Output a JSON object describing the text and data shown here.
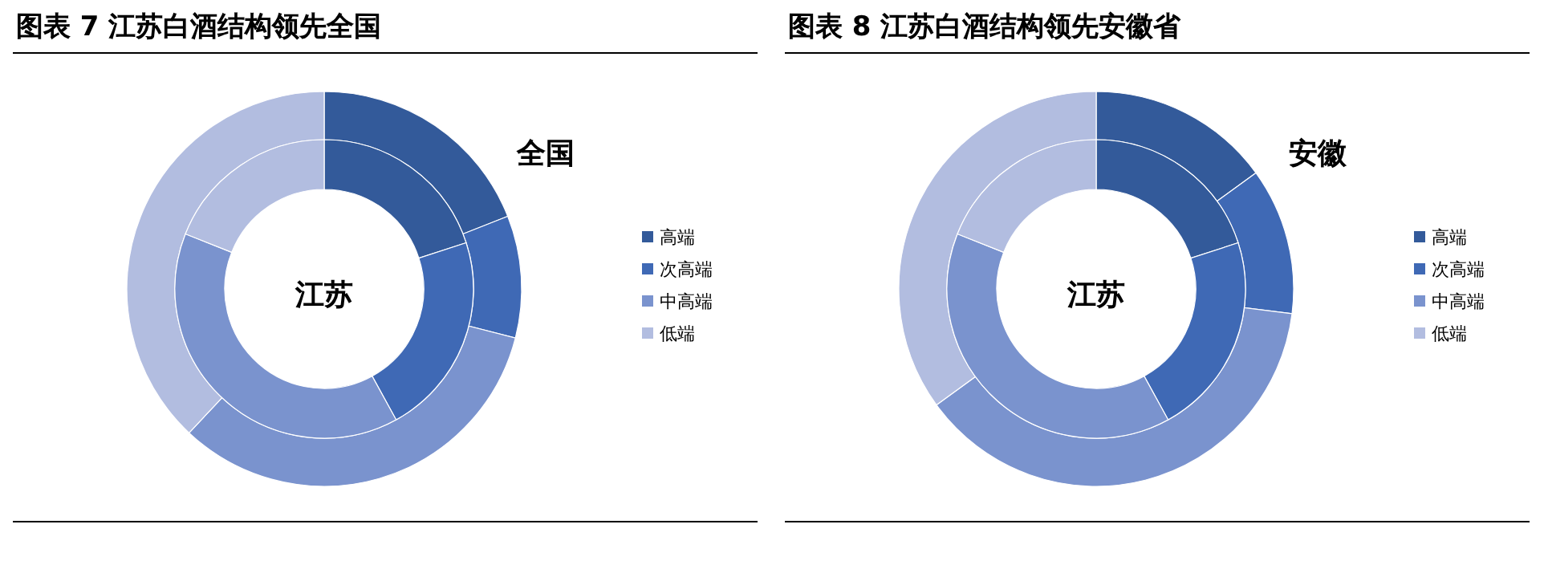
{
  "chart_data": [
    {
      "type": "donut",
      "title": "图表 7 江苏白酒结构领先全国",
      "categories": [
        "高端",
        "次高端",
        "中高端",
        "低端"
      ],
      "colors": [
        "#335a9a",
        "#3f69b5",
        "#7a93ce",
        "#b2bde0"
      ],
      "legend": "right",
      "series": [
        {
          "name": "全国",
          "values": [
            19,
            10,
            33,
            38
          ]
        },
        {
          "name": "江苏",
          "values": [
            20,
            22,
            39,
            19
          ]
        }
      ]
    },
    {
      "type": "donut",
      "title": "图表 8 江苏白酒结构领先安徽省",
      "categories": [
        "高端",
        "次高端",
        "中高端",
        "低端"
      ],
      "colors": [
        "#335a9a",
        "#3f69b5",
        "#7a93ce",
        "#b2bde0"
      ],
      "legend": "right",
      "series": [
        {
          "name": "安徽",
          "values": [
            15,
            12,
            38,
            35
          ]
        },
        {
          "name": "江苏",
          "values": [
            20,
            22,
            39,
            19
          ]
        }
      ]
    }
  ]
}
